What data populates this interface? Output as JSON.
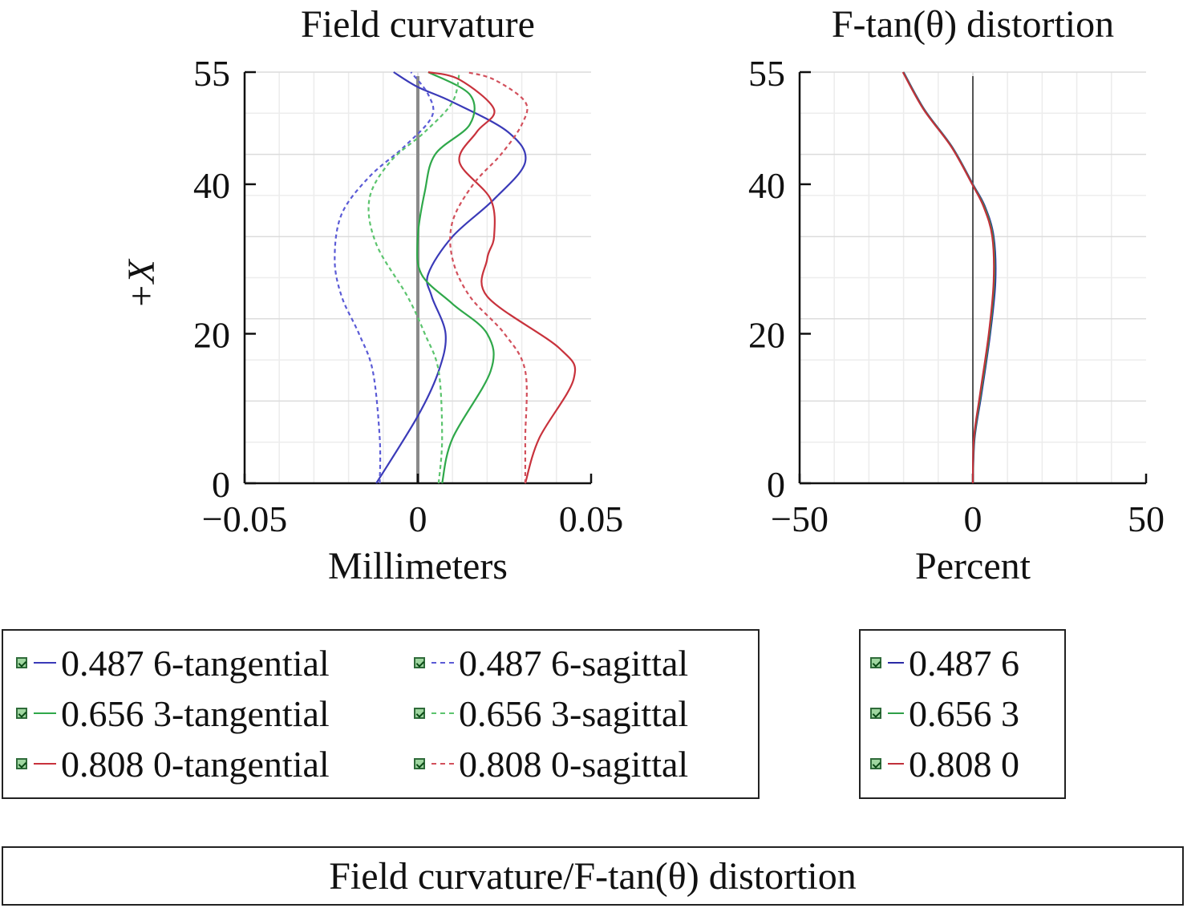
{
  "chart_data": [
    {
      "type": "line",
      "title": "Field curvature",
      "xlabel": "Millimeters",
      "ylabel": "+X",
      "xlim": [
        -0.05,
        0.05
      ],
      "ylim": [
        0,
        55
      ],
      "x_ticks": [
        "−0.05",
        "0",
        "0.05"
      ],
      "y_ticks": [
        "0",
        "20",
        "40",
        "55"
      ],
      "grid": true,
      "legend_placement": "bottom-left",
      "series": [
        {
          "name": "0.487 6-tangential",
          "color": "#3a3ab8",
          "dash": "solid",
          "points": [
            [
              -0.012,
              0
            ],
            [
              0,
              9
            ],
            [
              0.006,
              15
            ],
            [
              0.008,
              20
            ],
            [
              0.004,
              25
            ],
            [
              0.003,
              28
            ],
            [
              0.01,
              33
            ],
            [
              0.022,
              38
            ],
            [
              0.031,
              43
            ],
            [
              0.026,
              47
            ],
            [
              0.01,
              51
            ],
            [
              0,
              53
            ],
            [
              -0.007,
              55
            ]
          ]
        },
        {
          "name": "0.487 6-sagittal",
          "color": "#5b5bd6",
          "dash": "dash",
          "points": [
            [
              -0.011,
              0
            ],
            [
              -0.011,
              6
            ],
            [
              -0.013,
              15
            ],
            [
              -0.017,
              20
            ],
            [
              -0.022,
              25
            ],
            [
              -0.024,
              30
            ],
            [
              -0.022,
              36
            ],
            [
              -0.014,
              41
            ],
            [
              -0.004,
              45
            ],
            [
              0.004,
              49
            ],
            [
              0.003,
              52
            ],
            [
              -0.002,
              55
            ]
          ]
        },
        {
          "name": "0.656 3-tangential",
          "color": "#2fa84a",
          "dash": "solid",
          "points": [
            [
              0.007,
              0
            ],
            [
              0.01,
              6
            ],
            [
              0.021,
              15
            ],
            [
              0.02,
              20
            ],
            [
              0.01,
              24
            ],
            [
              0.001,
              28
            ],
            [
              0,
              33
            ],
            [
              0.002,
              39
            ],
            [
              0.005,
              44
            ],
            [
              0.015,
              48
            ],
            [
              0.015,
              52
            ],
            [
              0.003,
              55
            ]
          ]
        },
        {
          "name": "0.656 3-sagittal",
          "color": "#5cc46e",
          "dash": "dash",
          "points": [
            [
              0.006,
              0
            ],
            [
              0.007,
              6
            ],
            [
              0.006,
              15
            ],
            [
              0.002,
              20
            ],
            [
              -0.003,
              25
            ],
            [
              -0.012,
              32
            ],
            [
              -0.014,
              38
            ],
            [
              -0.008,
              43
            ],
            [
              0.002,
              47
            ],
            [
              0.01,
              51
            ],
            [
              0.012,
              55
            ]
          ]
        },
        {
          "name": "0.808 0-tangential",
          "color": "#c8323c",
          "dash": "solid",
          "points": [
            [
              0.031,
              0
            ],
            [
              0.035,
              6
            ],
            [
              0.045,
              14
            ],
            [
              0.041,
              18
            ],
            [
              0.02,
              25
            ],
            [
              0.02,
              30
            ],
            [
              0.022,
              33
            ],
            [
              0.021,
              38
            ],
            [
              0.012,
              43
            ],
            [
              0.017,
              47
            ],
            [
              0.022,
              50
            ],
            [
              0.012,
              54
            ],
            [
              0.003,
              55
            ]
          ]
        },
        {
          "name": "0.808 0-sagittal",
          "color": "#d2505c",
          "dash": "dash",
          "points": [
            [
              0.031,
              0
            ],
            [
              0.031,
              6
            ],
            [
              0.031,
              15
            ],
            [
              0.025,
              20
            ],
            [
              0.015,
              25
            ],
            [
              0.01,
              30
            ],
            [
              0.01,
              35
            ],
            [
              0.016,
              40
            ],
            [
              0.024,
              44
            ],
            [
              0.03,
              48
            ],
            [
              0.031,
              51
            ],
            [
              0.022,
              54
            ],
            [
              0.014,
              55
            ]
          ]
        }
      ]
    },
    {
      "type": "line",
      "title": "F-tan(θ) distortion",
      "xlabel": "Percent",
      "ylabel": "",
      "xlim": [
        -50,
        50
      ],
      "ylim": [
        0,
        55
      ],
      "x_ticks": [
        "−50",
        "0",
        "50"
      ],
      "y_ticks": [
        "0",
        "20",
        "40",
        "55"
      ],
      "grid": true,
      "legend_placement": "bottom-right",
      "series": [
        {
          "name": "0.487 6",
          "color": "#2a2aa6",
          "dash": "solid",
          "points": [
            [
              0,
              0
            ],
            [
              0.5,
              6
            ],
            [
              2.5,
              12
            ],
            [
              5,
              20
            ],
            [
              6.5,
              27
            ],
            [
              6,
              33
            ],
            [
              3.5,
              37
            ],
            [
              0,
              40
            ],
            [
              -6,
              45
            ],
            [
              -14,
              50
            ],
            [
              -20,
              55
            ]
          ]
        },
        {
          "name": "0.656 3",
          "color": "#2e9e48",
          "dash": "solid",
          "points": [
            [
              0,
              0
            ],
            [
              0.4,
              6
            ],
            [
              2.3,
              12
            ],
            [
              4.8,
              20
            ],
            [
              6.2,
              27
            ],
            [
              5.8,
              33
            ],
            [
              3.3,
              37
            ],
            [
              -0.1,
              40
            ],
            [
              -6.1,
              45
            ],
            [
              -14.1,
              50
            ],
            [
              -20.1,
              55
            ]
          ]
        },
        {
          "name": "0.808 0",
          "color": "#c0303a",
          "dash": "solid",
          "points": [
            [
              0,
              0
            ],
            [
              0.3,
              6
            ],
            [
              2.1,
              12
            ],
            [
              4.6,
              20
            ],
            [
              6,
              27
            ],
            [
              5.6,
              33
            ],
            [
              3.1,
              37
            ],
            [
              -0.2,
              40
            ],
            [
              -6.2,
              45
            ],
            [
              -14.2,
              50
            ],
            [
              -20.2,
              55
            ]
          ]
        }
      ]
    }
  ],
  "legend_left": [
    {
      "label": "0.487 6-tangential",
      "color": "#3a3ab8",
      "dash": "solid"
    },
    {
      "label": "0.487 6-sagittal",
      "color": "#5b5bd6",
      "dash": "dash"
    },
    {
      "label": "0.656 3-tangential",
      "color": "#2fa84a",
      "dash": "solid"
    },
    {
      "label": "0.656 3-sagittal",
      "color": "#5cc46e",
      "dash": "dash"
    },
    {
      "label": "0.808 0-tangential",
      "color": "#c8323c",
      "dash": "solid"
    },
    {
      "label": "0.808 0-sagittal",
      "color": "#d2505c",
      "dash": "dash"
    }
  ],
  "legend_right": [
    {
      "label": "0.487 6",
      "color": "#2a2aa6",
      "dash": "solid"
    },
    {
      "label": "0.656 3",
      "color": "#2e9e48",
      "dash": "solid"
    },
    {
      "label": "0.808 0",
      "color": "#c0303a",
      "dash": "solid"
    }
  ],
  "footer_title": "Field curvature/F-tan(θ) distortion"
}
